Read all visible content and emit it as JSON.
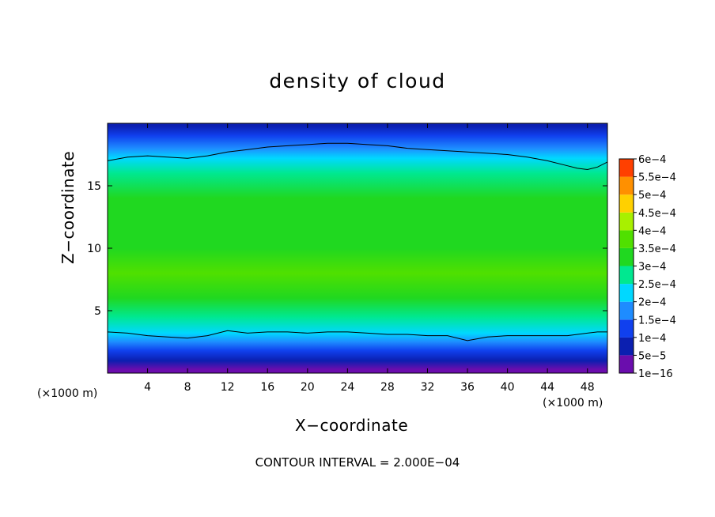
{
  "chart_data": {
    "type": "heatmap",
    "title": "density of cloud",
    "xlabel": "X−coordinate",
    "ylabel": "Z−coordinate",
    "x_units_left": "(×1000 m)",
    "x_units_right": "(×1000 m)",
    "footnote": "CONTOUR INTERVAL = 2.000E−04",
    "xlim": [
      0,
      50
    ],
    "ylim": [
      0,
      20
    ],
    "x_ticks": [
      4,
      8,
      12,
      16,
      20,
      24,
      28,
      32,
      36,
      40,
      44,
      48
    ],
    "x_tick_labels": [
      "4",
      "8",
      "12",
      "16",
      "20",
      "24",
      "28",
      "32",
      "36",
      "40",
      "44",
      "48"
    ],
    "y_ticks": [
      5,
      10,
      15
    ],
    "y_tick_labels": [
      "5",
      "10",
      "15"
    ],
    "colorbar": {
      "levels": [
        1e-16,
        5e-05,
        0.0001,
        0.00015,
        0.0002,
        0.00025,
        0.0003,
        0.00035,
        0.0004,
        0.00045,
        0.0005,
        0.00055,
        0.0006
      ],
      "labels": [
        "1e−16",
        "5e−5",
        "1e−4",
        "1.5e−4",
        "2e−4",
        "2.5e−4",
        "3e−4",
        "3.5e−4",
        "4e−4",
        "4.5e−4",
        "5e−4",
        "5.5e−4",
        "6e−4"
      ],
      "colors": [
        "#6a0dad",
        "#0b1fb0",
        "#1040ee",
        "#1e8cff",
        "#00d8ff",
        "#00e890",
        "#20d820",
        "#50e000",
        "#a8f000",
        "#ffd000",
        "#ff9000",
        "#ff4000",
        "#ff3030",
        "#ff9090"
      ]
    },
    "profile_z": [
      0.3,
      1.0,
      1.8,
      2.5,
      3.2,
      4.5,
      6.0,
      8.0,
      10.0,
      12.0,
      14.0,
      16.0,
      17.2,
      18.0,
      19.0,
      19.8
    ],
    "profile_density": [
      1e-16,
      5e-05,
      0.0001,
      0.00015,
      0.0002,
      0.00026,
      0.00031,
      0.00035,
      0.00034,
      0.00033,
      0.0003,
      0.00026,
      0.00021,
      0.00017,
      0.00013,
      9e-05
    ],
    "contour_2e-4": {
      "x": [
        0,
        2,
        4,
        6,
        8,
        10,
        12,
        14,
        16,
        18,
        20,
        22,
        24,
        26,
        28,
        30,
        32,
        34,
        36,
        38,
        40,
        42,
        44,
        46,
        47,
        48,
        49,
        50
      ],
      "upper_z": [
        17.0,
        17.3,
        17.4,
        17.3,
        17.2,
        17.4,
        17.7,
        17.9,
        18.1,
        18.2,
        18.3,
        18.4,
        18.4,
        18.3,
        18.2,
        18.0,
        17.9,
        17.8,
        17.7,
        17.6,
        17.5,
        17.3,
        17.0,
        16.6,
        16.4,
        16.3,
        16.5,
        16.9
      ],
      "lower_z": [
        3.3,
        3.2,
        3.0,
        2.9,
        2.8,
        3.0,
        3.4,
        3.2,
        3.3,
        3.3,
        3.2,
        3.3,
        3.3,
        3.2,
        3.1,
        3.1,
        3.0,
        3.0,
        2.6,
        2.9,
        3.0,
        3.0,
        3.0,
        3.0,
        3.1,
        3.2,
        3.3,
        3.3
      ]
    }
  }
}
